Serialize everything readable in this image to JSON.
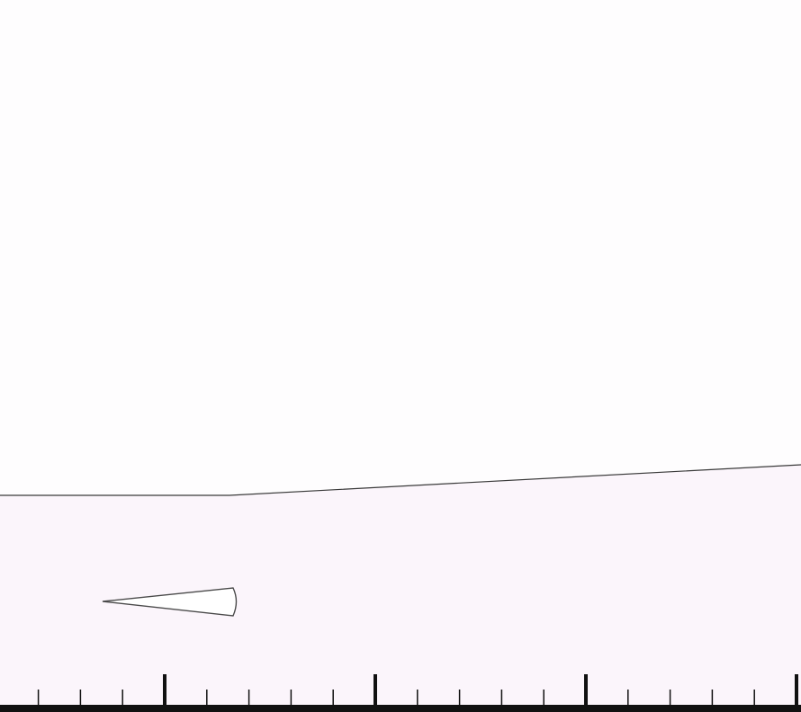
{
  "scene": {
    "sky_color": "#fefdfe",
    "ground_color": "#fbf5fb",
    "line_color": "#3a3a3a",
    "object_stroke": "#4a4a4a",
    "ruler_color": "#111111",
    "ground_icon": "sloped-ground-line",
    "object_icon": "wedge-pointer",
    "ruler": {
      "major_ticks": 4,
      "minor_ticks_per_major": 5
    }
  }
}
